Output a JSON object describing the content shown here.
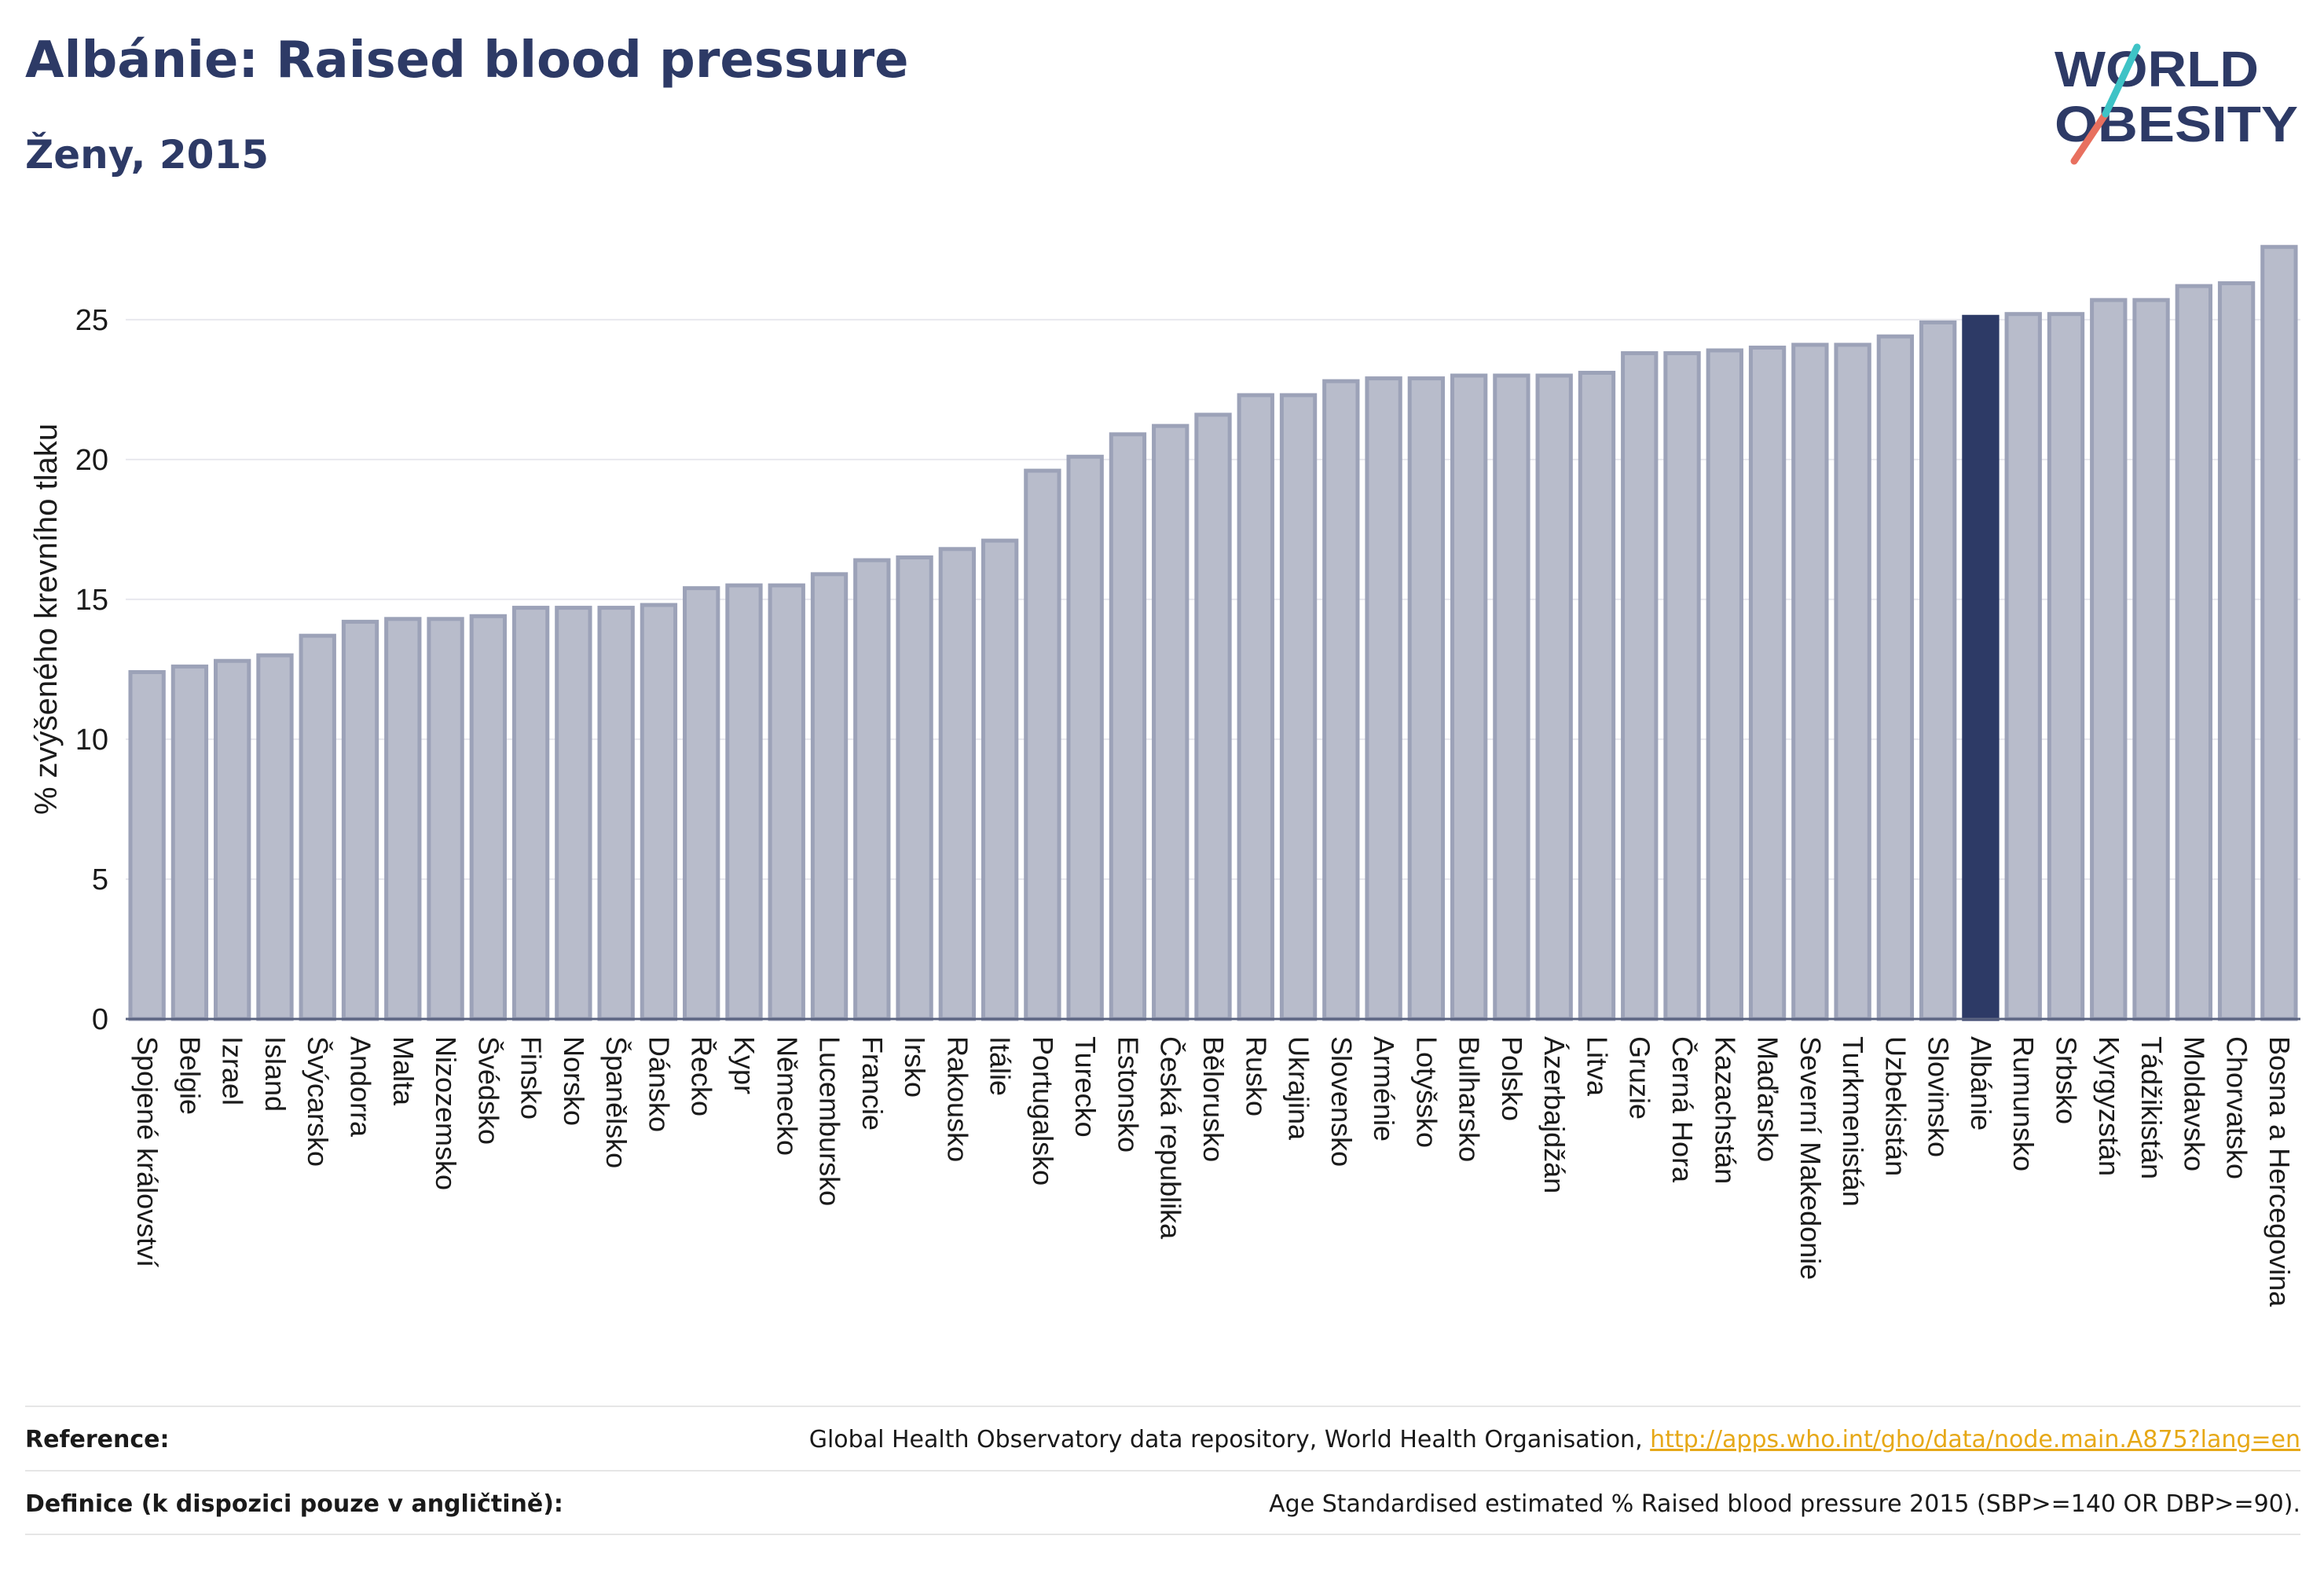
{
  "header": {
    "title": "Albánie: Raised blood pressure",
    "subtitle": "Ženy, 2015"
  },
  "logo": {
    "line1": "WORLD",
    "line2": "OBESITY"
  },
  "colors": {
    "bar_default": "#b8bccb",
    "bar_default_stroke": "#9ca2b8",
    "bar_highlight": "#2d3a66",
    "axis_text": "#1a1a1a",
    "grid": "#e8e8ee"
  },
  "chart_data": {
    "type": "bar",
    "ylabel": "% zvýšeného krevního tlaku",
    "ylim": [
      0,
      28
    ],
    "yticks": [
      0,
      5,
      10,
      15,
      20,
      25
    ],
    "grid": true,
    "highlight": "Albánie",
    "categories": [
      "Spojené království",
      "Belgie",
      "Izrael",
      "Island",
      "Švýcarsko",
      "Andorra",
      "Malta",
      "Nizozemsko",
      "Švédsko",
      "Finsko",
      "Norsko",
      "Španělsko",
      "Dánsko",
      "Řecko",
      "Kypr",
      "Německo",
      "Lucembursko",
      "Francie",
      "Irsko",
      "Rakousko",
      "Itálie",
      "Portugalsko",
      "Turecko",
      "Estonsko",
      "Česká republika",
      "Bělorusko",
      "Rusko",
      "Ukrajina",
      "Slovensko",
      "Arménie",
      "Lotyšsko",
      "Bulharsko",
      "Polsko",
      "Ázerbajdžán",
      "Litva",
      "Gruzie",
      "Černá Hora",
      "Kazachstán",
      "Maďarsko",
      "Severní Makedonie",
      "Turkmenistán",
      "Uzbekistán",
      "Slovinsko",
      "Albánie",
      "Rumunsko",
      "Srbsko",
      "Kyrgyzstán",
      "Tádžikistán",
      "Moldavsko",
      "Chorvatsko",
      "Bosna a Hercegovina"
    ],
    "values": [
      12.4,
      12.6,
      12.8,
      13.0,
      13.7,
      14.2,
      14.3,
      14.3,
      14.4,
      14.7,
      14.7,
      14.7,
      14.8,
      15.4,
      15.5,
      15.5,
      15.9,
      16.4,
      16.5,
      16.8,
      17.1,
      19.6,
      20.1,
      20.9,
      21.2,
      21.6,
      22.3,
      22.3,
      22.8,
      22.9,
      22.9,
      23.0,
      23.0,
      23.0,
      23.1,
      23.8,
      23.8,
      23.9,
      24.0,
      24.1,
      24.1,
      24.4,
      24.9,
      25.1,
      25.2,
      25.2,
      25.7,
      25.7,
      26.2,
      26.3,
      27.6
    ]
  },
  "footer": {
    "reference_label": "Reference:",
    "reference_text": "Global Health Observatory data repository, World Health Organisation, ",
    "reference_link": "http://apps.who.int/gho/data/node.main.A875?lang=en",
    "definition_label": "Definice (k dispozici pouze v angličtině):",
    "definition_text": "Age Standardised estimated % Raised blood pressure 2015 (SBP>=140 OR DBP>=90)."
  }
}
